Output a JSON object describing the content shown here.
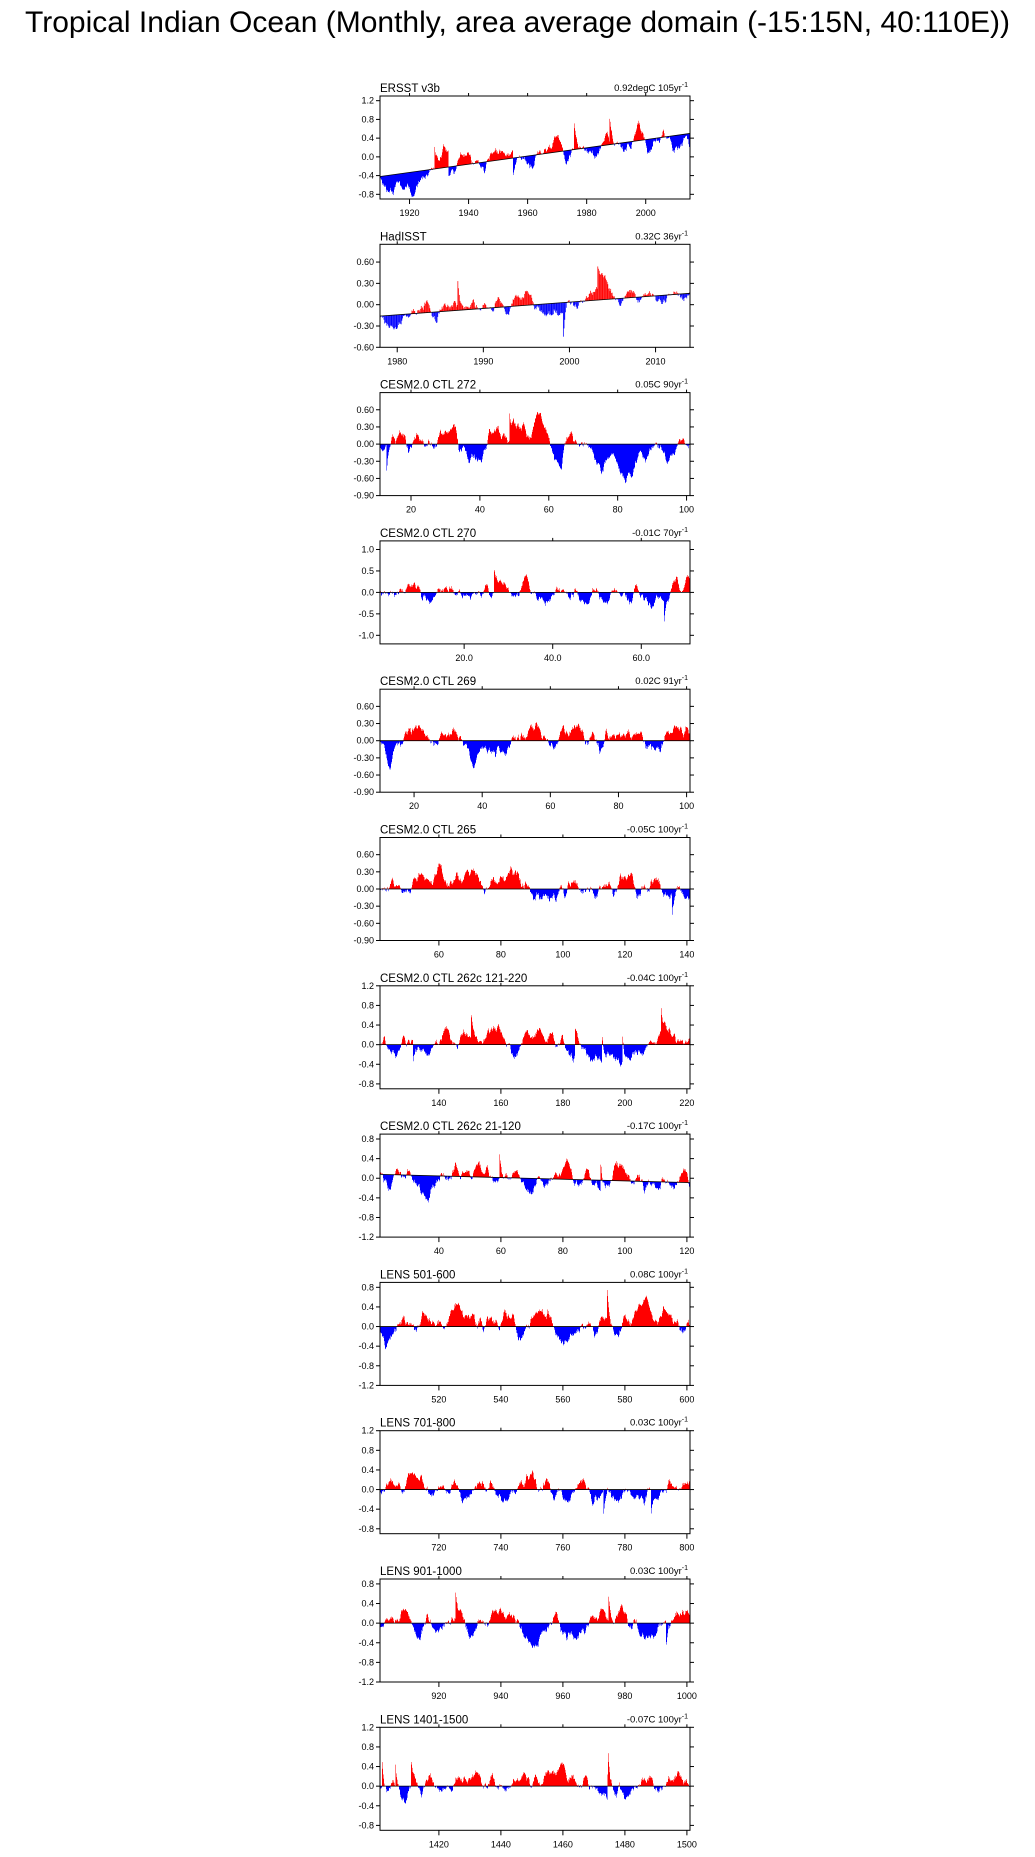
{
  "page": {
    "title": "Tropical Indian Ocean (Monthly, area average domain (-15:15N, 40:110E))"
  },
  "colors": {
    "positive": "#ff0000",
    "negative": "#0000ff",
    "trend_line": "#000000",
    "axis": "#000000"
  },
  "chart_data": [
    {
      "type": "bar",
      "title": "ERSST v3b",
      "trend": "0.92degC 105yr",
      "trend_sup": "-1",
      "x_range": [
        1910,
        2015
      ],
      "ylim": [
        -0.9,
        1.3
      ],
      "yticks": [
        "1.2",
        "0.8",
        "0.4",
        "0.0",
        "-0.4",
        "-0.8"
      ],
      "yticks_values": [
        1.2,
        0.8,
        0.4,
        0.0,
        -0.4,
        -0.8
      ],
      "xticks": [
        "1920",
        "1940",
        "1960",
        "1980",
        "2000"
      ],
      "xticks_values": [
        1920,
        1940,
        1960,
        1980,
        2000
      ],
      "trend_start": -0.42,
      "trend_end": 0.5,
      "amplitude": 0.28,
      "seed": 11
    },
    {
      "type": "bar",
      "title": "HadISST",
      "trend": "0.32C 36yr",
      "trend_sup": "-1",
      "x_range": [
        1978,
        2014
      ],
      "ylim": [
        -0.6,
        0.85
      ],
      "yticks": [
        "0.60",
        "0.30",
        "0.00",
        "-0.30",
        "-0.60"
      ],
      "yticks_values": [
        0.6,
        0.3,
        0.0,
        -0.3,
        -0.6
      ],
      "xticks": [
        "1980",
        "1990",
        "2000",
        "2010"
      ],
      "xticks_values": [
        1980,
        1990,
        2000,
        2010
      ],
      "trend_start": -0.16,
      "trend_end": 0.16,
      "amplitude": 0.2,
      "seed": 23
    },
    {
      "type": "bar",
      "title": "CESM2.0 CTL 272",
      "trend": "0.05C 90yr",
      "trend_sup": "-1",
      "x_range": [
        11,
        101
      ],
      "ylim": [
        -0.9,
        0.9
      ],
      "yticks": [
        "0.60",
        "0.30",
        "0.00",
        "-0.30",
        "-0.60",
        "-0.90"
      ],
      "yticks_values": [
        0.6,
        0.3,
        0.0,
        -0.3,
        -0.6,
        -0.9
      ],
      "xticks": [
        "20",
        "40",
        "60",
        "80",
        "100"
      ],
      "xticks_values": [
        20,
        40,
        60,
        80,
        100
      ],
      "trend_start": 0.0,
      "trend_end": 0.0,
      "amplitude": 0.25,
      "seed": 37
    },
    {
      "type": "bar",
      "title": "CESM2.0 CTL 270",
      "trend": "-0.01C 70yr",
      "trend_sup": "-1",
      "x_range": [
        1,
        71
      ],
      "ylim": [
        -1.2,
        1.2
      ],
      "yticks": [
        "1.0",
        "0.5",
        "0.0",
        "-0.5",
        "-1.0"
      ],
      "yticks_values": [
        1.0,
        0.5,
        0.0,
        -0.5,
        -1.0
      ],
      "xticks": [
        "20.0",
        "40.0",
        "60.0"
      ],
      "xticks_values": [
        20,
        40,
        60
      ],
      "trend_start": 0.0,
      "trend_end": 0.0,
      "amplitude": 0.28,
      "seed": 41
    },
    {
      "type": "bar",
      "title": "CESM2.0 CTL 269",
      "trend": "0.02C 91yr",
      "trend_sup": "-1",
      "x_range": [
        10,
        101
      ],
      "ylim": [
        -0.9,
        0.9
      ],
      "yticks": [
        "0.60",
        "0.30",
        "0.00",
        "-0.30",
        "-0.60",
        "-0.90"
      ],
      "yticks_values": [
        0.6,
        0.3,
        0.0,
        -0.3,
        -0.6,
        -0.9
      ],
      "xticks": [
        "20",
        "40",
        "60",
        "80",
        "100"
      ],
      "xticks_values": [
        20,
        40,
        60,
        80,
        100
      ],
      "trend_start": 0.0,
      "trend_end": 0.0,
      "amplitude": 0.25,
      "seed": 53
    },
    {
      "type": "bar",
      "title": "CESM2.0 CTL 265",
      "trend": "-0.05C 100yr",
      "trend_sup": "-1",
      "x_range": [
        41,
        141
      ],
      "ylim": [
        -0.9,
        0.9
      ],
      "yticks": [
        "0.60",
        "0.30",
        "0.00",
        "-0.30",
        "-0.60",
        "-0.90"
      ],
      "yticks_values": [
        0.6,
        0.3,
        0.0,
        -0.3,
        -0.6,
        -0.9
      ],
      "xticks": [
        "60",
        "80",
        "100",
        "120",
        "140"
      ],
      "xticks_values": [
        60,
        80,
        100,
        120,
        140
      ],
      "trend_start": 0.0,
      "trend_end": 0.0,
      "amplitude": 0.25,
      "seed": 61
    },
    {
      "type": "bar",
      "title": "CESM2.0 CTL 262c 121-220",
      "trend": "-0.04C 100yr",
      "trend_sup": "-1",
      "x_range": [
        121,
        221
      ],
      "ylim": [
        -0.9,
        1.2
      ],
      "yticks": [
        "1.2",
        "0.8",
        "0.4",
        "0.0",
        "-0.4",
        "-0.8"
      ],
      "yticks_values": [
        1.2,
        0.8,
        0.4,
        0.0,
        -0.4,
        -0.8
      ],
      "xticks": [
        "140",
        "160",
        "180",
        "200",
        "220"
      ],
      "xticks_values": [
        140,
        160,
        180,
        200,
        220
      ],
      "trend_start": 0.0,
      "trend_end": 0.0,
      "amplitude": 0.26,
      "seed": 71
    },
    {
      "type": "bar",
      "title": "CESM2.0 CTL 262c 21-120",
      "trend": "-0.17C 100yr",
      "trend_sup": "-1",
      "x_range": [
        21,
        121
      ],
      "ylim": [
        -1.2,
        0.9
      ],
      "yticks": [
        "0.8",
        "0.4",
        "0.0",
        "-0.4",
        "-0.8",
        "-1.2"
      ],
      "yticks_values": [
        0.8,
        0.4,
        0.0,
        -0.4,
        -0.8,
        -1.2
      ],
      "xticks": [
        "40",
        "60",
        "80",
        "100",
        "120"
      ],
      "xticks_values": [
        40,
        60,
        80,
        100,
        120
      ],
      "trend_start": 0.08,
      "trend_end": -0.09,
      "amplitude": 0.28,
      "seed": 83
    },
    {
      "type": "bar",
      "title": "LENS 501-600",
      "trend": "0.08C 100yr",
      "trend_sup": "-1",
      "x_range": [
        501,
        601
      ],
      "ylim": [
        -1.2,
        0.9
      ],
      "yticks": [
        "0.8",
        "0.4",
        "0.0",
        "-0.4",
        "-0.8",
        "-1.2"
      ],
      "yticks_values": [
        0.8,
        0.4,
        0.0,
        -0.4,
        -0.8,
        -1.2
      ],
      "xticks": [
        "520",
        "540",
        "560",
        "580",
        "600"
      ],
      "xticks_values": [
        520,
        540,
        560,
        580,
        600
      ],
      "trend_start": 0.0,
      "trend_end": 0.0,
      "amplitude": 0.3,
      "seed": 97
    },
    {
      "type": "bar",
      "title": "LENS 701-800",
      "trend": "0.03C 100yr",
      "trend_sup": "-1",
      "x_range": [
        701,
        801
      ],
      "ylim": [
        -0.9,
        1.2
      ],
      "yticks": [
        "1.2",
        "0.8",
        "0.4",
        "0.0",
        "-0.4",
        "-0.8"
      ],
      "yticks_values": [
        1.2,
        0.8,
        0.4,
        0.0,
        -0.4,
        -0.8
      ],
      "xticks": [
        "720",
        "740",
        "760",
        "780",
        "800"
      ],
      "xticks_values": [
        720,
        740,
        760,
        780,
        800
      ],
      "trend_start": 0.0,
      "trend_end": 0.0,
      "amplitude": 0.28,
      "seed": 103
    },
    {
      "type": "bar",
      "title": "LENS 901-1000",
      "trend": "0.03C 100yr",
      "trend_sup": "-1",
      "x_range": [
        901,
        1001
      ],
      "ylim": [
        -1.2,
        0.9
      ],
      "yticks": [
        "0.8",
        "0.4",
        "0.0",
        "-0.4",
        "-0.8",
        "-1.2"
      ],
      "yticks_values": [
        0.8,
        0.4,
        0.0,
        -0.4,
        -0.8,
        -1.2
      ],
      "xticks": [
        "920",
        "940",
        "960",
        "980",
        "1000"
      ],
      "xticks_values": [
        920,
        940,
        960,
        980,
        1000
      ],
      "trend_start": 0.0,
      "trend_end": 0.0,
      "amplitude": 0.27,
      "seed": 109
    },
    {
      "type": "bar",
      "title": "LENS 1401-1500",
      "trend": "-0.07C 100yr",
      "trend_sup": "-1",
      "x_range": [
        1401,
        1501
      ],
      "ylim": [
        -0.9,
        1.2
      ],
      "yticks": [
        "1.2",
        "0.8",
        "0.4",
        "0.0",
        "-0.4",
        "-0.8"
      ],
      "yticks_values": [
        1.2,
        0.8,
        0.4,
        0.0,
        -0.4,
        -0.8
      ],
      "xticks": [
        "1420",
        "1440",
        "1460",
        "1480",
        "1500"
      ],
      "xticks_values": [
        1420,
        1440,
        1460,
        1480,
        1500
      ],
      "trend_start": 0.0,
      "trend_end": 0.0,
      "amplitude": 0.28,
      "seed": 127
    }
  ]
}
